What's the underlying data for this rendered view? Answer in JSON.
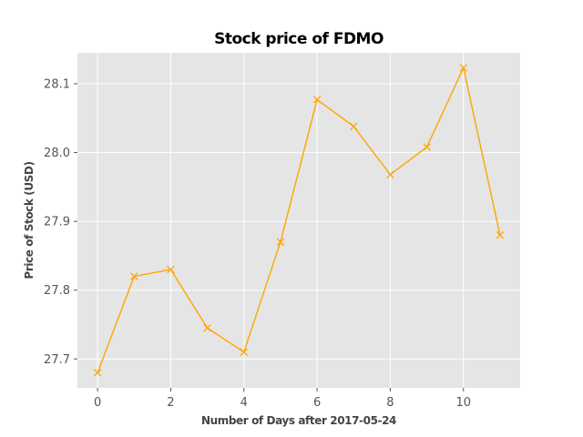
{
  "chart_data": {
    "type": "line",
    "title": "Stock price of FDMO",
    "xlabel": "Number of Days after 2017-05-24",
    "ylabel": "Price of Stock (USD)",
    "x": [
      0,
      1,
      2,
      3,
      4,
      5,
      6,
      7,
      8,
      9,
      10,
      11
    ],
    "series": [
      {
        "values": [
          27.68,
          27.82,
          27.83,
          27.745,
          27.71,
          27.87,
          28.077,
          28.038,
          27.968,
          28.008,
          28.123,
          27.88
        ]
      }
    ],
    "xlim": [
      -0.55,
      11.55
    ],
    "ylim": [
      27.658,
      28.145
    ],
    "xticks": [
      0,
      2,
      4,
      6,
      8,
      10
    ],
    "yticks": [
      27.7,
      27.8,
      27.9,
      28.0,
      28.1
    ],
    "xtick_labels": [
      "0",
      "2",
      "4",
      "6",
      "8",
      "10"
    ],
    "ytick_labels": [
      "27.7",
      "27.8",
      "27.9",
      "28.0",
      "28.1"
    ],
    "grid": true,
    "marker": "x",
    "colors": {
      "line": "#ffa500",
      "plot_background": "#e5e5e5",
      "grid": "#ffffff"
    }
  }
}
